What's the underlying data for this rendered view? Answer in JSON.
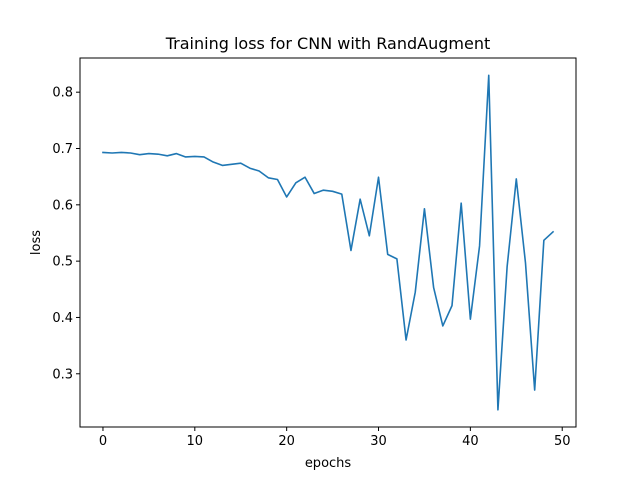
{
  "chart_data": {
    "type": "line",
    "title": "Training loss for CNN with RandAugment",
    "xlabel": "epochs",
    "ylabel": "loss",
    "xlim": [
      -2.5,
      51.5
    ],
    "ylim": [
      0.2055,
      0.8607
    ],
    "xticks": [
      0,
      10,
      20,
      30,
      40,
      50
    ],
    "yticks": [
      0.3,
      0.4,
      0.5,
      0.6,
      0.7,
      0.8
    ],
    "xtick_labels": [
      "0",
      "10",
      "20",
      "30",
      "40",
      "50"
    ],
    "ytick_labels": [
      "0.3",
      "0.4",
      "0.5",
      "0.6",
      "0.7",
      "0.8"
    ],
    "grid": false,
    "series": [
      {
        "name": "loss",
        "color": "#1f77b4",
        "x": [
          0,
          1,
          2,
          3,
          4,
          5,
          6,
          7,
          8,
          9,
          10,
          11,
          12,
          13,
          14,
          15,
          16,
          17,
          18,
          19,
          20,
          21,
          22,
          23,
          24,
          25,
          26,
          27,
          28,
          29,
          30,
          31,
          32,
          33,
          34,
          35,
          36,
          37,
          38,
          39,
          40,
          41,
          42,
          43,
          44,
          45,
          46,
          47,
          48,
          49
        ],
        "values": [
          0.693,
          0.692,
          0.693,
          0.692,
          0.689,
          0.691,
          0.69,
          0.687,
          0.691,
          0.685,
          0.686,
          0.685,
          0.676,
          0.67,
          0.672,
          0.674,
          0.665,
          0.66,
          0.648,
          0.645,
          0.614,
          0.639,
          0.649,
          0.62,
          0.626,
          0.624,
          0.619,
          0.519,
          0.61,
          0.545,
          0.649,
          0.512,
          0.504,
          0.36,
          0.445,
          0.593,
          0.453,
          0.385,
          0.421,
          0.603,
          0.397,
          0.527,
          0.83,
          0.236,
          0.49,
          0.646,
          0.497,
          0.271,
          0.537,
          0.552
        ]
      }
    ]
  }
}
